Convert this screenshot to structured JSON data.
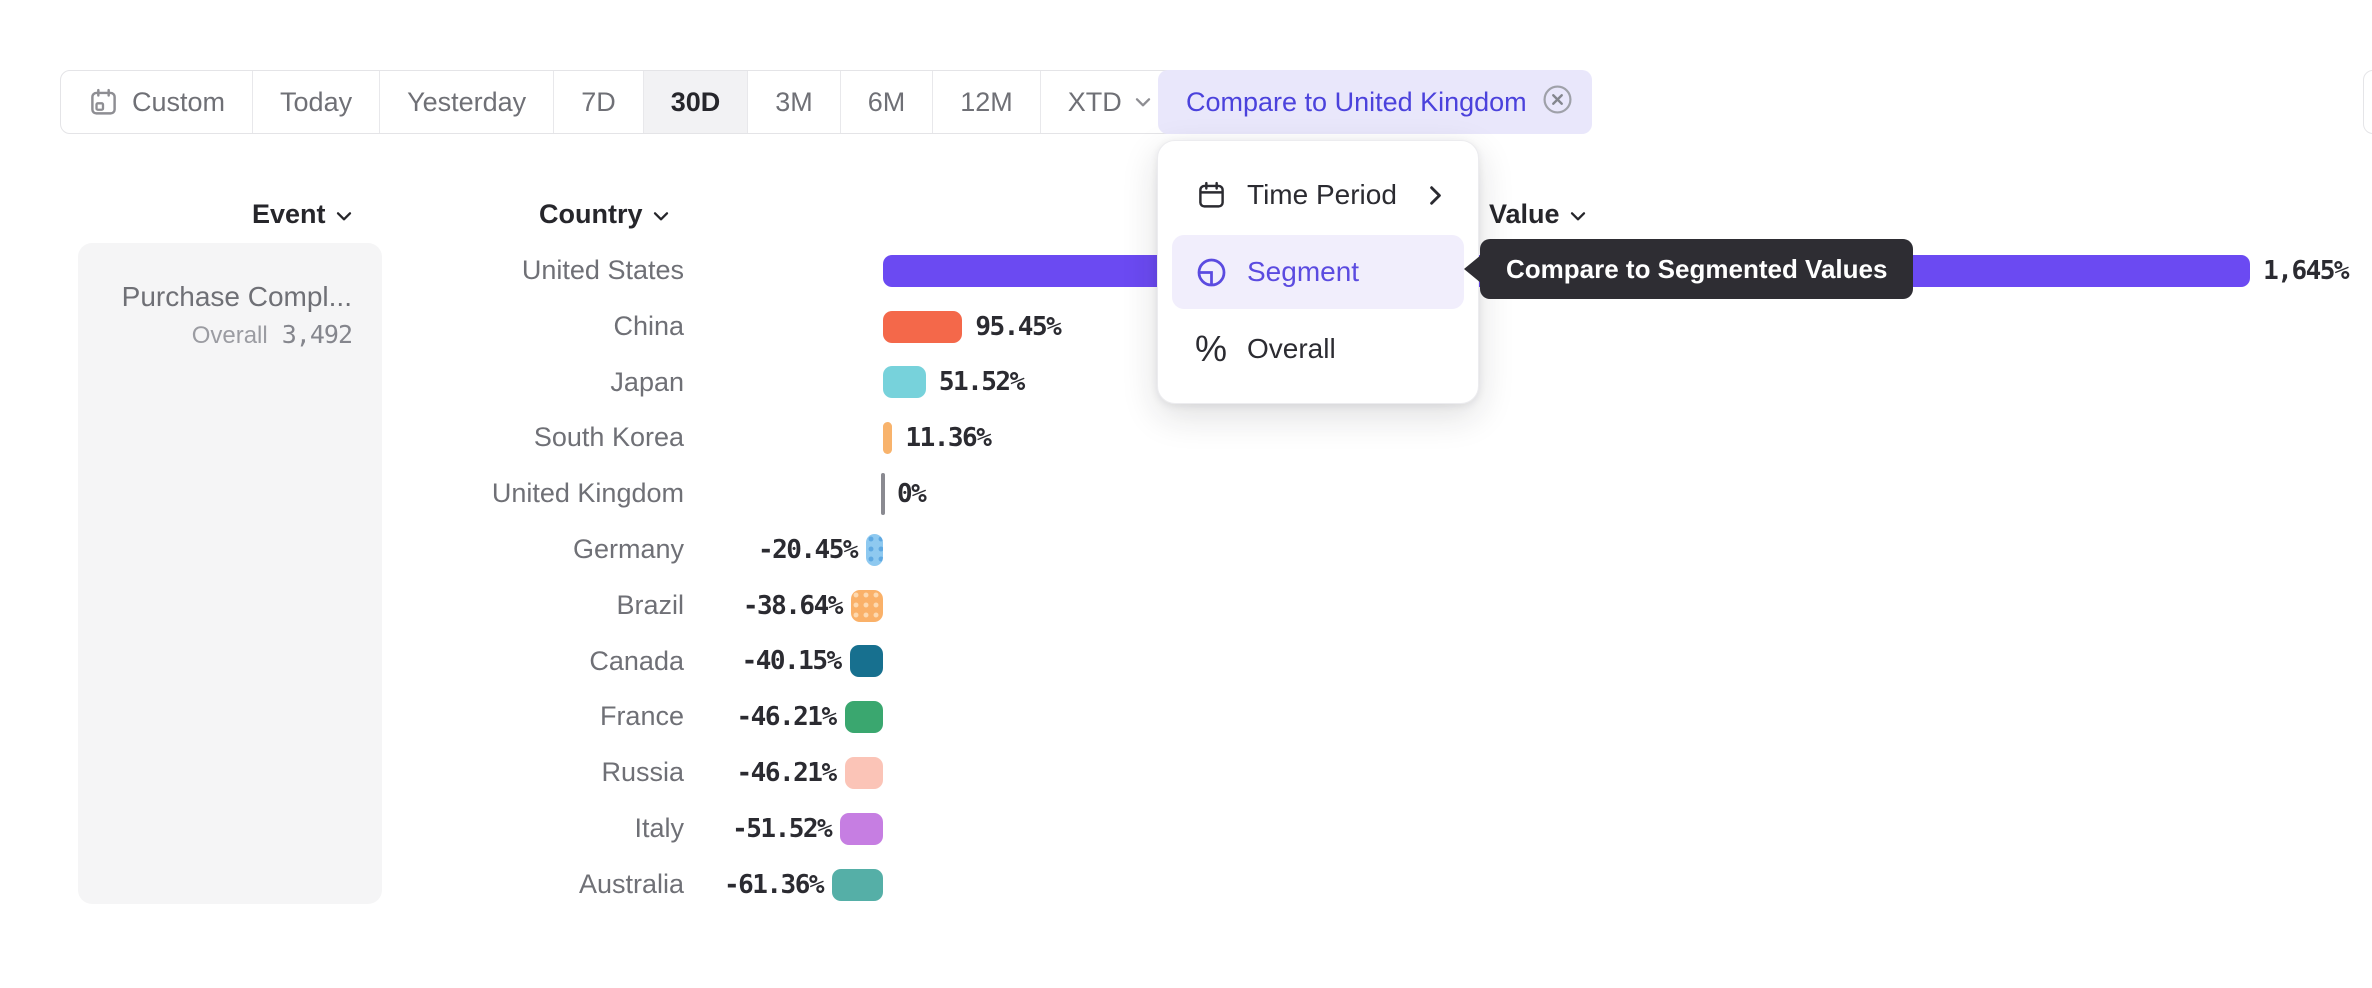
{
  "toolbar": {
    "items": [
      {
        "label": "Custom",
        "icon": "calendar-icon"
      },
      {
        "label": "Today"
      },
      {
        "label": "Yesterday"
      },
      {
        "label": "7D"
      },
      {
        "label": "30D",
        "selected": true
      },
      {
        "label": "3M"
      },
      {
        "label": "6M"
      },
      {
        "label": "12M"
      },
      {
        "label": "XTD",
        "chevron": true
      }
    ],
    "compare_chip": {
      "label": "Compare to United Kingdom",
      "close_icon": "circle-x-icon"
    }
  },
  "columns": {
    "event": "Event",
    "country": "Country",
    "value": "Value"
  },
  "event_panel": {
    "event_name": "Purchase Compl...",
    "overall_label": "Overall",
    "overall_value": "3,492"
  },
  "menu": {
    "items": [
      {
        "label": "Time Period",
        "icon": "calendar-icon",
        "has_submenu": true
      },
      {
        "label": "Segment",
        "icon": "segment-icon",
        "selected": true
      },
      {
        "label": "Overall",
        "icon": "percent-icon"
      }
    ]
  },
  "tooltip": {
    "text": "Compare to Segmented Values"
  },
  "chart_data": {
    "type": "bar",
    "orientation": "horizontal",
    "unit": "%",
    "title": "",
    "xlabel": "Value",
    "ylabel": "Country",
    "categories": [
      "United States",
      "China",
      "Japan",
      "South Korea",
      "United Kingdom",
      "Germany",
      "Brazil",
      "Canada",
      "France",
      "Russia",
      "Italy",
      "Australia"
    ],
    "values": [
      1645,
      95.45,
      51.52,
      11.36,
      0,
      -20.45,
      -38.64,
      -40.15,
      -46.21,
      -46.21,
      -51.52,
      -61.36
    ],
    "value_labels": [
      "1,645%",
      "95.45%",
      "51.52%",
      "11.36%",
      "0%",
      "-20.45%",
      "-38.64%",
      "-40.15%",
      "-46.21%",
      "-46.21%",
      "-51.52%",
      "-61.36%"
    ],
    "bar_colors": [
      "#6B4AF2",
      "#F4684A",
      "#77D2DB",
      "#F8B36C",
      "#8A8A91",
      "#8EC9F0",
      "#FAB169",
      "#17708F",
      "#3AA76F",
      "#FBC4B7",
      "#C67EE2",
      "#55AFA7"
    ],
    "pattern_dot_colors": [
      null,
      null,
      null,
      null,
      null,
      "#5FA9E2",
      "#FDD9B0",
      null,
      null,
      null,
      null,
      null
    ],
    "baseline_value": 0,
    "grid": false,
    "legend": false
  },
  "palette": {
    "accent_purple": "#5B4BE0",
    "chip_bg": "#E9E7FB",
    "chip_text": "#4B42DC",
    "toolbar_border": "#E4E4E7",
    "toolbar_text": "#6F7076",
    "selected_segment_bg": "#F2F2F4",
    "dark_text": "#26262B",
    "menu_highlight_bg": "#F1EEFC",
    "tooltip_bg": "#2E2D33",
    "event_panel_bg": "#F5F5F6",
    "country_label_text": "#6F7076",
    "value_label_text": "#2B2B31",
    "zero_tick": "#8A8A91"
  }
}
